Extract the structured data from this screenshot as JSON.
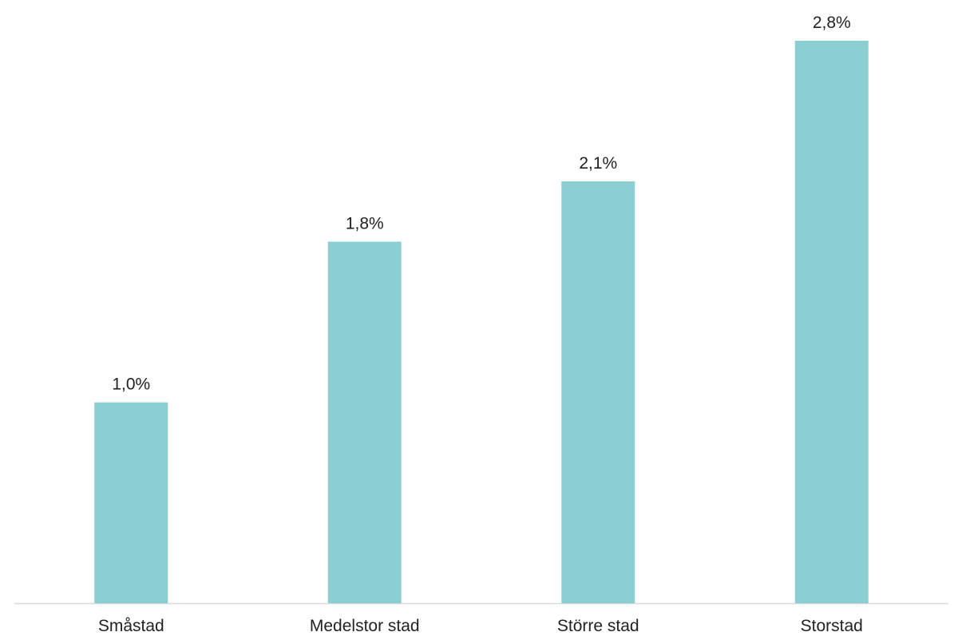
{
  "chart_data": {
    "type": "bar",
    "categories": [
      "Småstad",
      "Medelstor stad",
      "Större stad",
      "Storstad"
    ],
    "values": [
      1.0,
      1.8,
      2.1,
      2.8
    ],
    "value_labels": [
      "1,0%",
      "1,8%",
      "2,1%",
      "2,8%"
    ],
    "unit": "%",
    "title": "",
    "xlabel": "",
    "ylabel": "",
    "ylim": [
      0,
      2.8
    ],
    "grid": false,
    "legend": "none",
    "bar_color": "#8ccfd3",
    "axis_color": "#d9d9d9"
  }
}
